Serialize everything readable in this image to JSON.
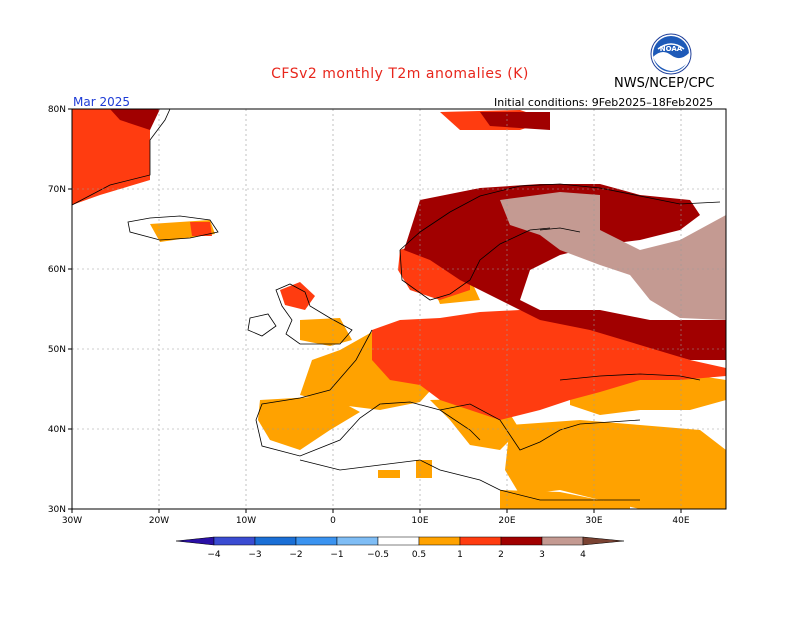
{
  "header": {
    "title": "CFSv2 monthly T2m anomalies (K)",
    "organization": "NWS/NCEP/CPC",
    "period": "Mar 2025",
    "initial_conditions": "Initial conditions: 9Feb2025–18Feb2025",
    "logo_text": "NOAA"
  },
  "axes": {
    "lat_labels": [
      "80N",
      "70N",
      "60N",
      "50N",
      "40N",
      "30N"
    ],
    "lon_labels": [
      "30W",
      "20W",
      "10W",
      "0",
      "10E",
      "20E",
      "30E",
      "40E"
    ]
  },
  "colorbar": {
    "labels": [
      "−4",
      "−3",
      "−2",
      "−1",
      "−0.5",
      "0.5",
      "1",
      "2",
      "3",
      "4"
    ],
    "colors": [
      "#2a10a6",
      "#3a4cd2",
      "#1a6fd6",
      "#3a93f0",
      "#7fbdf5",
      "#ffffff",
      "#ffa200",
      "#ff3c10",
      "#a10000",
      "#c49a92",
      "#7a4232"
    ]
  },
  "legend_colors": {
    "anom_0_5_1": "#ffa200",
    "anom_1_2": "#ff3c10",
    "anom_2_3": "#a10000",
    "anom_3_4": "#c49a92"
  },
  "map_extent": {
    "lon": [
      -30,
      45
    ],
    "lat": [
      30,
      80
    ]
  }
}
